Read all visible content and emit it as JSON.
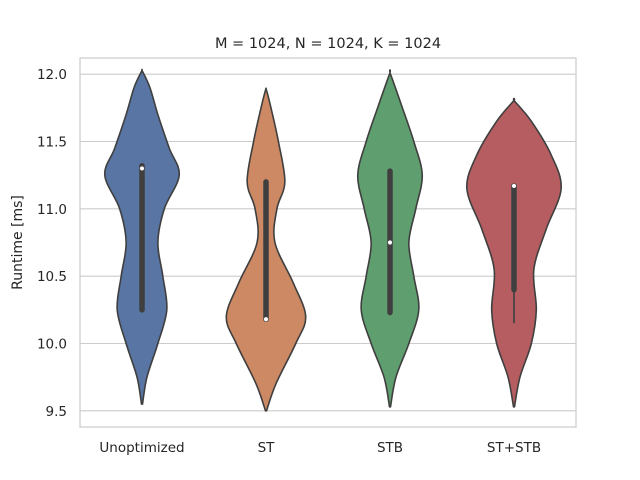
{
  "chart_data": {
    "type": "violin",
    "title": "M = 1024, N = 1024, K = 1024",
    "xlabel": "",
    "ylabel": "Runtime [ms]",
    "ylim": [
      9.38,
      12.12
    ],
    "yticks": [
      9.5,
      10.0,
      10.5,
      11.0,
      11.5,
      12.0
    ],
    "ytick_labels": [
      "9.5",
      "10.0",
      "10.5",
      "11.0",
      "11.5",
      "12.0"
    ],
    "grid": true,
    "categories": [
      "Unoptimized",
      "ST",
      "STB",
      "ST+STB"
    ],
    "series": [
      {
        "name": "Unoptimized",
        "color": "#5875a4",
        "min": 9.55,
        "max": 12.02,
        "median": 11.3,
        "q1": 10.25,
        "q3": 11.32,
        "whisker_low": 10.25,
        "whisker_high": 11.32,
        "density": [
          [
            9.55,
            0.01
          ],
          [
            9.75,
            0.1
          ],
          [
            10.0,
            0.32
          ],
          [
            10.25,
            0.5
          ],
          [
            10.5,
            0.42
          ],
          [
            10.75,
            0.32
          ],
          [
            11.0,
            0.45
          ],
          [
            11.25,
            0.75
          ],
          [
            11.45,
            0.55
          ],
          [
            11.7,
            0.32
          ],
          [
            11.9,
            0.16
          ],
          [
            12.02,
            0.01
          ]
        ]
      },
      {
        "name": "ST",
        "color": "#cc8963",
        "min": 9.5,
        "max": 11.88,
        "median": 10.18,
        "q1": 10.18,
        "q3": 11.2,
        "whisker_low": 10.18,
        "whisker_high": 11.2,
        "density": [
          [
            9.5,
            0.01
          ],
          [
            9.7,
            0.2
          ],
          [
            10.0,
            0.6
          ],
          [
            10.2,
            0.8
          ],
          [
            10.45,
            0.55
          ],
          [
            10.75,
            0.18
          ],
          [
            11.0,
            0.22
          ],
          [
            11.2,
            0.38
          ],
          [
            11.5,
            0.25
          ],
          [
            11.75,
            0.1
          ],
          [
            11.88,
            0.01
          ]
        ]
      },
      {
        "name": "STB",
        "color": "#5f9e6e",
        "min": 9.53,
        "max": 12.0,
        "median": 10.75,
        "q1": 10.23,
        "q3": 11.28,
        "whisker_low": 10.23,
        "whisker_high": 11.28,
        "density": [
          [
            9.53,
            0.01
          ],
          [
            9.75,
            0.12
          ],
          [
            10.0,
            0.38
          ],
          [
            10.25,
            0.58
          ],
          [
            10.5,
            0.48
          ],
          [
            10.75,
            0.38
          ],
          [
            11.0,
            0.52
          ],
          [
            11.25,
            0.65
          ],
          [
            11.5,
            0.48
          ],
          [
            11.75,
            0.25
          ],
          [
            12.0,
            0.01
          ]
        ]
      },
      {
        "name": "ST+STB",
        "color": "#b55d60",
        "min": 9.53,
        "max": 11.8,
        "median": 11.17,
        "q1": 10.4,
        "q3": 11.17,
        "whisker_low": 10.15,
        "whisker_high": 11.17,
        "density": [
          [
            9.53,
            0.01
          ],
          [
            9.75,
            0.12
          ],
          [
            10.0,
            0.35
          ],
          [
            10.25,
            0.45
          ],
          [
            10.55,
            0.4
          ],
          [
            10.85,
            0.65
          ],
          [
            11.15,
            0.95
          ],
          [
            11.4,
            0.75
          ],
          [
            11.65,
            0.35
          ],
          [
            11.8,
            0.01
          ]
        ]
      }
    ]
  }
}
